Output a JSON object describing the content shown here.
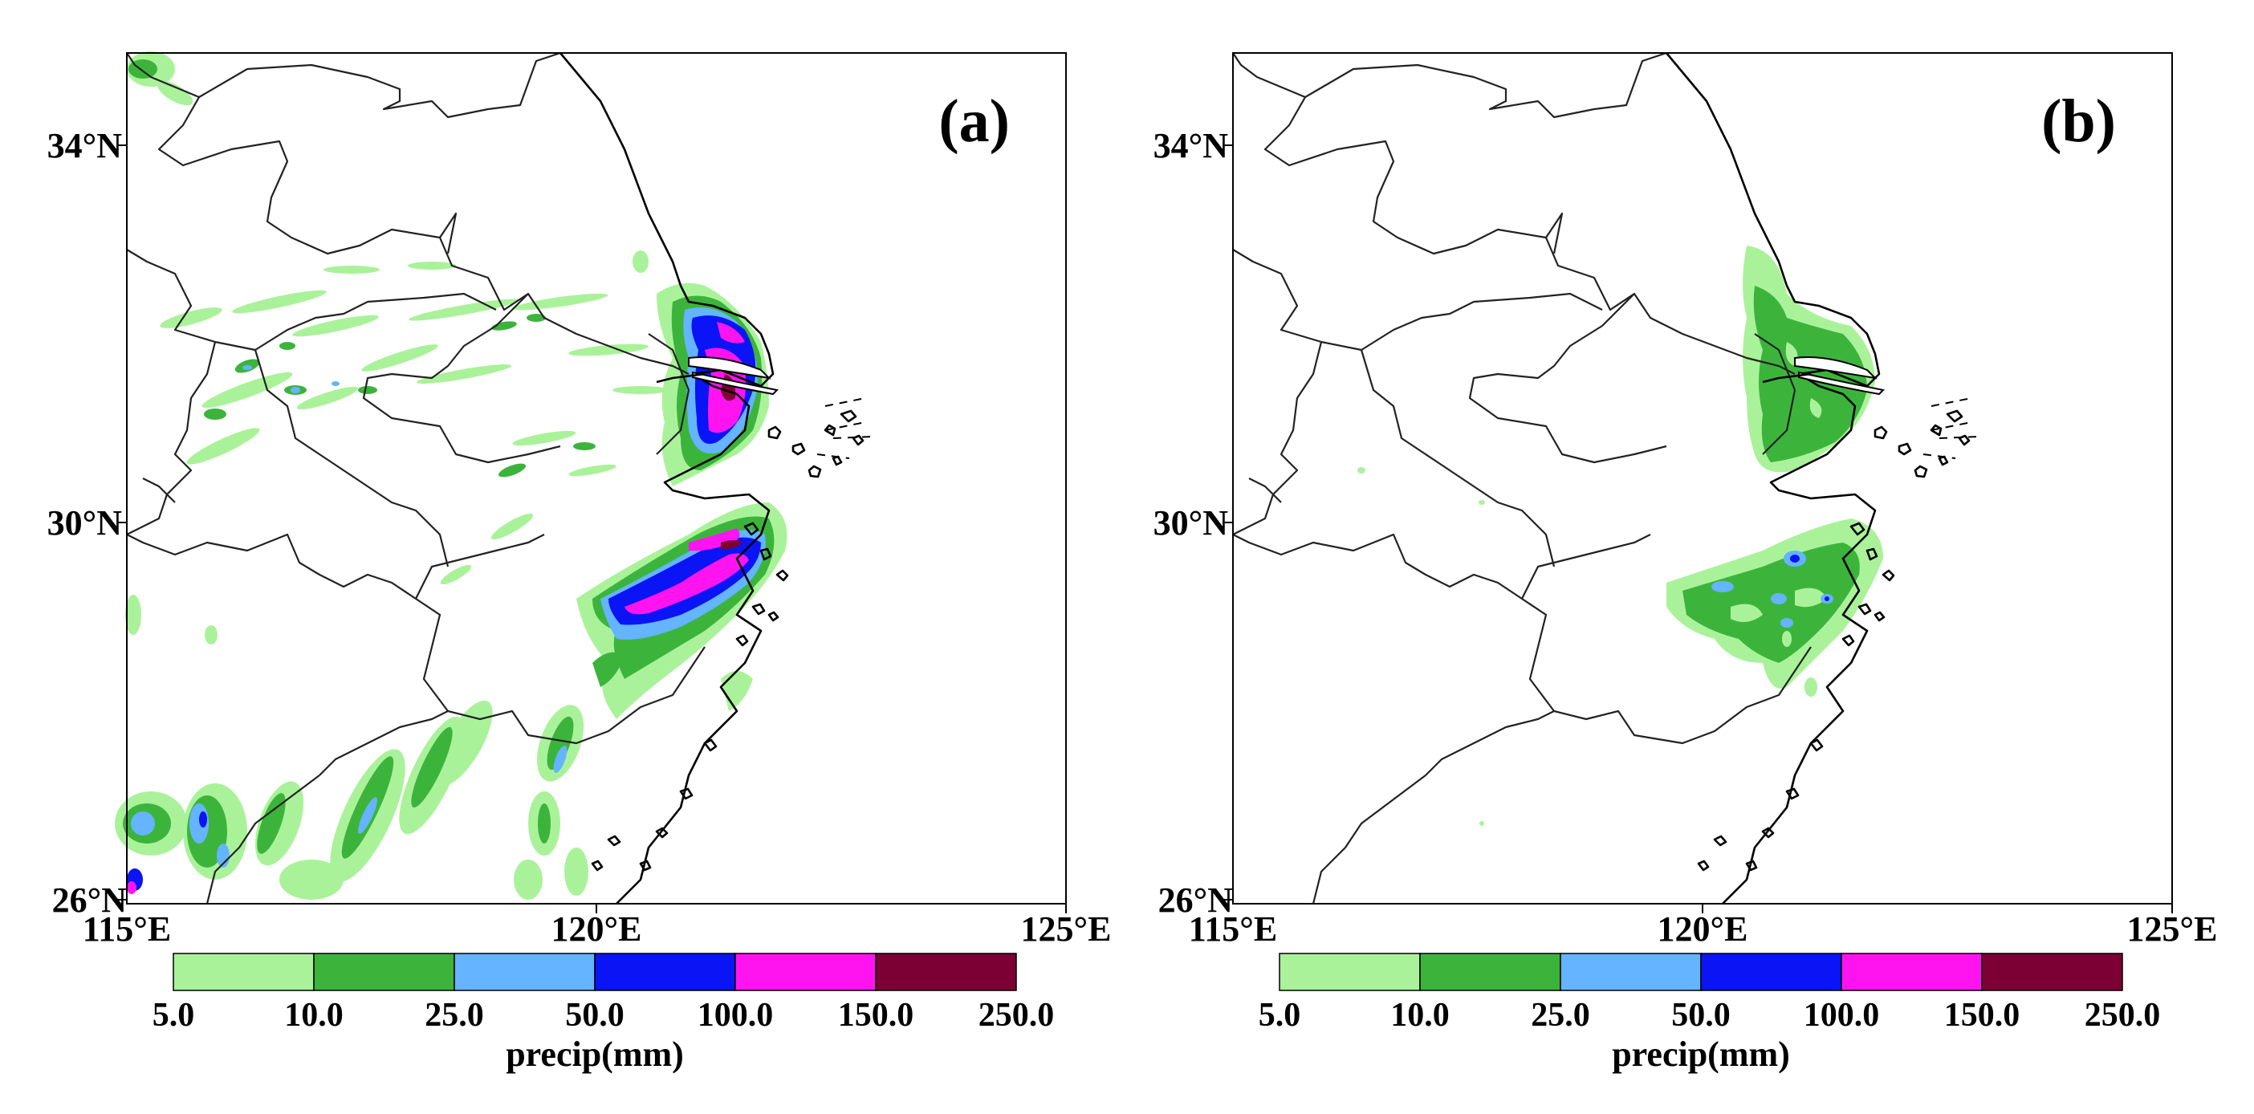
{
  "legend": {
    "levels": [
      "5.0",
      "10.0",
      "25.0",
      "50.0",
      "100.0",
      "150.0",
      "250.0"
    ],
    "colors": [
      "#aaf29a",
      "#3cb43c",
      "#64b4ff",
      "#0a14f5",
      "#ff14f0",
      "#7c0034"
    ],
    "unit_label": "precip(mm)"
  },
  "axes": {
    "lon_ticks": [
      "115°E",
      "120°E",
      "125°E"
    ],
    "lat_ticks": [
      "34°N",
      "30°N",
      "26°N"
    ],
    "lon_range": [
      115,
      125
    ],
    "lat_range": [
      26,
      35
    ]
  },
  "panels": [
    {
      "id": "a",
      "label": "(a)"
    },
    {
      "id": "b",
      "label": "(b)"
    }
  ],
  "colors": {
    "frame": "#000000",
    "border": "#222222",
    "background": "#ffffff"
  }
}
